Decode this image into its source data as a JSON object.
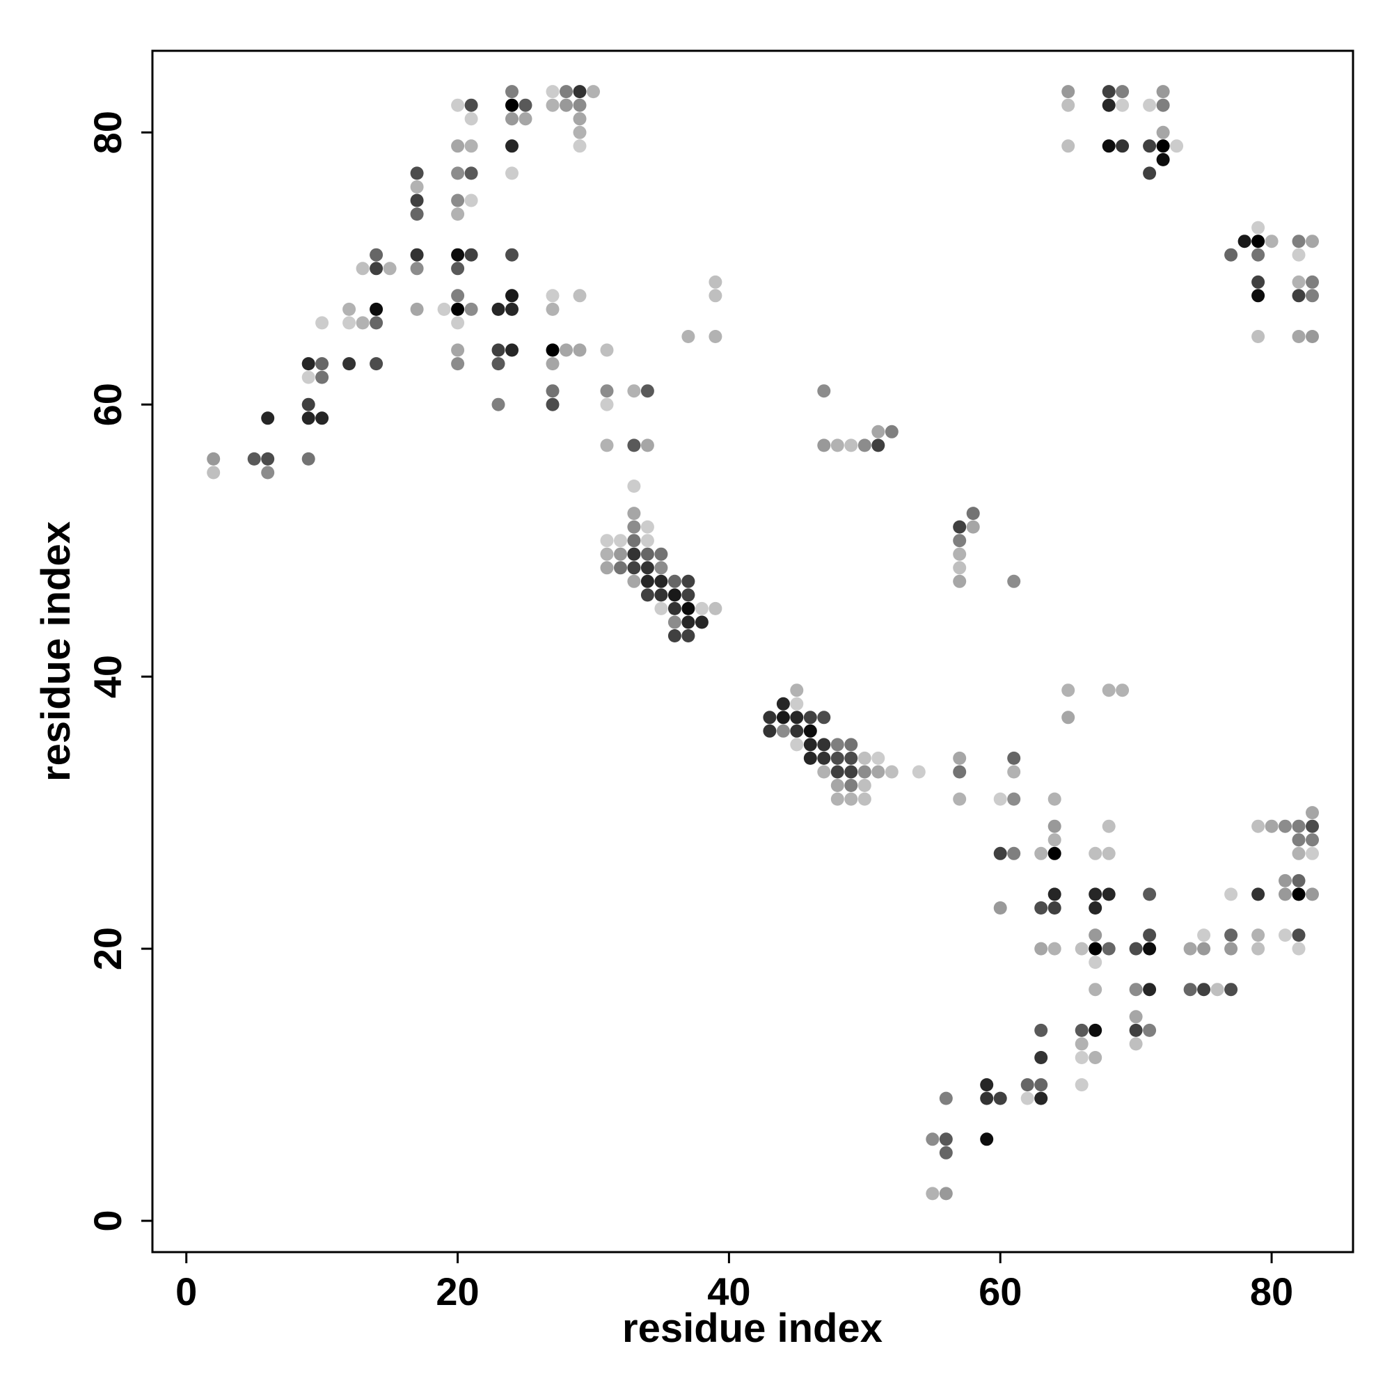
{
  "chart_data": {
    "type": "scatter",
    "title": "",
    "xlabel": "residue index",
    "ylabel": "residue index",
    "xlim": [
      -2.5,
      86
    ],
    "ylim": [
      -2.3,
      86
    ],
    "xticks": [
      0,
      20,
      40,
      60,
      80
    ],
    "yticks": [
      0,
      20,
      40,
      60,
      80
    ],
    "grid": false,
    "legend": "none",
    "point_color": "#000000",
    "value_encoding": "opacity 0-1 (contact strength)",
    "points": [
      [
        2,
        56,
        0.4
      ],
      [
        2,
        55,
        0.25
      ],
      [
        5,
        56,
        0.65
      ],
      [
        6,
        56,
        0.7
      ],
      [
        6,
        59,
        0.85
      ],
      [
        6,
        55,
        0.45
      ],
      [
        9,
        63,
        0.85
      ],
      [
        9,
        62,
        0.2
      ],
      [
        9,
        60,
        0.75
      ],
      [
        9,
        59,
        0.85
      ],
      [
        9,
        56,
        0.55
      ],
      [
        10,
        63,
        0.6
      ],
      [
        10,
        62,
        0.55
      ],
      [
        10,
        66,
        0.2
      ],
      [
        10,
        59,
        0.85
      ],
      [
        12,
        67,
        0.3
      ],
      [
        12,
        66,
        0.2
      ],
      [
        12,
        63,
        0.8
      ],
      [
        13,
        66,
        0.3
      ],
      [
        13,
        70,
        0.25
      ],
      [
        14,
        71,
        0.6
      ],
      [
        14,
        70,
        0.75
      ],
      [
        14,
        67,
        0.95
      ],
      [
        14,
        66,
        0.6
      ],
      [
        14,
        63,
        0.7
      ],
      [
        15,
        70,
        0.3
      ],
      [
        17,
        77,
        0.7
      ],
      [
        17,
        76,
        0.3
      ],
      [
        17,
        75,
        0.75
      ],
      [
        17,
        74,
        0.6
      ],
      [
        17,
        71,
        0.8
      ],
      [
        17,
        70,
        0.45
      ],
      [
        17,
        67,
        0.35
      ],
      [
        19,
        67,
        0.2
      ],
      [
        20,
        82,
        0.2
      ],
      [
        20,
        79,
        0.35
      ],
      [
        20,
        77,
        0.45
      ],
      [
        20,
        75,
        0.45
      ],
      [
        20,
        74,
        0.3
      ],
      [
        20,
        71,
        0.95
      ],
      [
        20,
        70,
        0.65
      ],
      [
        20,
        68,
        0.5
      ],
      [
        20,
        67,
        1.0
      ],
      [
        20,
        66,
        0.2
      ],
      [
        20,
        64,
        0.35
      ],
      [
        20,
        63,
        0.45
      ],
      [
        21,
        82,
        0.7
      ],
      [
        21,
        81,
        0.2
      ],
      [
        21,
        79,
        0.3
      ],
      [
        21,
        77,
        0.65
      ],
      [
        21,
        75,
        0.2
      ],
      [
        21,
        71,
        0.75
      ],
      [
        21,
        67,
        0.45
      ],
      [
        23,
        67,
        0.85
      ],
      [
        23,
        64,
        0.75
      ],
      [
        23,
        63,
        0.65
      ],
      [
        23,
        60,
        0.5
      ],
      [
        24,
        83,
        0.5
      ],
      [
        24,
        82,
        1.0
      ],
      [
        24,
        81,
        0.4
      ],
      [
        24,
        79,
        0.85
      ],
      [
        24,
        77,
        0.2
      ],
      [
        24,
        71,
        0.7
      ],
      [
        24,
        68,
        0.9
      ],
      [
        24,
        67,
        0.85
      ],
      [
        24,
        64,
        0.85
      ],
      [
        25,
        82,
        0.65
      ],
      [
        25,
        81,
        0.35
      ],
      [
        27,
        83,
        0.2
      ],
      [
        27,
        82,
        0.3
      ],
      [
        27,
        68,
        0.2
      ],
      [
        27,
        67,
        0.3
      ],
      [
        27,
        64,
        1.0
      ],
      [
        27,
        63,
        0.35
      ],
      [
        27,
        61,
        0.55
      ],
      [
        27,
        60,
        0.7
      ],
      [
        28,
        83,
        0.5
      ],
      [
        28,
        82,
        0.4
      ],
      [
        28,
        64,
        0.35
      ],
      [
        29,
        83,
        0.8
      ],
      [
        29,
        82,
        0.45
      ],
      [
        29,
        81,
        0.35
      ],
      [
        29,
        80,
        0.3
      ],
      [
        29,
        79,
        0.2
      ],
      [
        29,
        68,
        0.25
      ],
      [
        29,
        64,
        0.35
      ],
      [
        30,
        83,
        0.3
      ],
      [
        31,
        64,
        0.25
      ],
      [
        31,
        61,
        0.45
      ],
      [
        31,
        60,
        0.2
      ],
      [
        31,
        57,
        0.3
      ],
      [
        31,
        50,
        0.2
      ],
      [
        31,
        49,
        0.3
      ],
      [
        31,
        48,
        0.35
      ],
      [
        32,
        50,
        0.2
      ],
      [
        32,
        49,
        0.4
      ],
      [
        32,
        48,
        0.55
      ],
      [
        33,
        61,
        0.3
      ],
      [
        33,
        57,
        0.65
      ],
      [
        33,
        54,
        0.2
      ],
      [
        33,
        52,
        0.35
      ],
      [
        33,
        51,
        0.45
      ],
      [
        33,
        50,
        0.55
      ],
      [
        33,
        49,
        0.8
      ],
      [
        33,
        48,
        0.75
      ],
      [
        33,
        47,
        0.35
      ],
      [
        34,
        61,
        0.65
      ],
      [
        34,
        57,
        0.35
      ],
      [
        34,
        51,
        0.2
      ],
      [
        34,
        50,
        0.2
      ],
      [
        34,
        49,
        0.6
      ],
      [
        34,
        48,
        0.8
      ],
      [
        34,
        47,
        0.85
      ],
      [
        34,
        46,
        0.75
      ],
      [
        35,
        49,
        0.55
      ],
      [
        35,
        48,
        0.45
      ],
      [
        35,
        47,
        0.85
      ],
      [
        35,
        46,
        0.8
      ],
      [
        35,
        45,
        0.2
      ],
      [
        36,
        47,
        0.6
      ],
      [
        36,
        46,
        0.9
      ],
      [
        36,
        45,
        0.8
      ],
      [
        36,
        44,
        0.45
      ],
      [
        36,
        43,
        0.75
      ],
      [
        37,
        47,
        0.75
      ],
      [
        37,
        46,
        0.75
      ],
      [
        37,
        45,
        0.95
      ],
      [
        37,
        44,
        0.85
      ],
      [
        37,
        43,
        0.75
      ],
      [
        37,
        65,
        0.3
      ],
      [
        38,
        45,
        0.2
      ],
      [
        38,
        44,
        0.85
      ],
      [
        39,
        69,
        0.25
      ],
      [
        39,
        68,
        0.25
      ],
      [
        39,
        65,
        0.3
      ],
      [
        39,
        45,
        0.25
      ],
      [
        43,
        37,
        0.8
      ],
      [
        43,
        36,
        0.8
      ],
      [
        44,
        38,
        0.85
      ],
      [
        44,
        37,
        0.9
      ],
      [
        44,
        36,
        0.45
      ],
      [
        45,
        39,
        0.3
      ],
      [
        45,
        38,
        0.2
      ],
      [
        45,
        37,
        0.85
      ],
      [
        45,
        36,
        0.8
      ],
      [
        45,
        35,
        0.2
      ],
      [
        46,
        37,
        0.75
      ],
      [
        46,
        36,
        0.95
      ],
      [
        46,
        35,
        0.85
      ],
      [
        46,
        34,
        0.85
      ],
      [
        47,
        61,
        0.45
      ],
      [
        47,
        57,
        0.4
      ],
      [
        47,
        37,
        0.7
      ],
      [
        47,
        35,
        0.8
      ],
      [
        47,
        34,
        0.8
      ],
      [
        47,
        33,
        0.3
      ],
      [
        48,
        57,
        0.3
      ],
      [
        48,
        35,
        0.5
      ],
      [
        48,
        34,
        0.7
      ],
      [
        48,
        33,
        0.75
      ],
      [
        48,
        32,
        0.35
      ],
      [
        48,
        31,
        0.3
      ],
      [
        49,
        57,
        0.25
      ],
      [
        49,
        35,
        0.55
      ],
      [
        49,
        34,
        0.7
      ],
      [
        49,
        33,
        0.75
      ],
      [
        49,
        32,
        0.5
      ],
      [
        49,
        31,
        0.3
      ],
      [
        50,
        57,
        0.45
      ],
      [
        50,
        34,
        0.25
      ],
      [
        50,
        33,
        0.45
      ],
      [
        50,
        32,
        0.25
      ],
      [
        50,
        31,
        0.25
      ],
      [
        51,
        58,
        0.35
      ],
      [
        51,
        57,
        0.75
      ],
      [
        51,
        34,
        0.2
      ],
      [
        51,
        33,
        0.35
      ],
      [
        52,
        58,
        0.5
      ],
      [
        52,
        33,
        0.25
      ],
      [
        54,
        33,
        0.2
      ],
      [
        55,
        6,
        0.45
      ],
      [
        55,
        2,
        0.3
      ],
      [
        56,
        9,
        0.5
      ],
      [
        56,
        6,
        0.65
      ],
      [
        56,
        5,
        0.6
      ],
      [
        56,
        2,
        0.4
      ],
      [
        57,
        51,
        0.75
      ],
      [
        57,
        50,
        0.5
      ],
      [
        57,
        49,
        0.3
      ],
      [
        57,
        48,
        0.25
      ],
      [
        57,
        47,
        0.35
      ],
      [
        57,
        34,
        0.35
      ],
      [
        57,
        33,
        0.55
      ],
      [
        57,
        31,
        0.3
      ],
      [
        58,
        52,
        0.55
      ],
      [
        58,
        51,
        0.35
      ],
      [
        59,
        10,
        0.85
      ],
      [
        59,
        9,
        0.8
      ],
      [
        59,
        6,
        0.95
      ],
      [
        60,
        9,
        0.75
      ],
      [
        60,
        31,
        0.2
      ],
      [
        60,
        27,
        0.75
      ],
      [
        60,
        23,
        0.4
      ],
      [
        61,
        47,
        0.45
      ],
      [
        61,
        34,
        0.6
      ],
      [
        61,
        33,
        0.3
      ],
      [
        61,
        31,
        0.45
      ],
      [
        61,
        27,
        0.5
      ],
      [
        62,
        10,
        0.6
      ],
      [
        62,
        9,
        0.2
      ],
      [
        63,
        27,
        0.3
      ],
      [
        63,
        23,
        0.7
      ],
      [
        63,
        20,
        0.35
      ],
      [
        63,
        14,
        0.65
      ],
      [
        63,
        12,
        0.8
      ],
      [
        63,
        10,
        0.6
      ],
      [
        63,
        9,
        0.85
      ],
      [
        64,
        31,
        0.3
      ],
      [
        64,
        29,
        0.4
      ],
      [
        64,
        28,
        0.3
      ],
      [
        64,
        27,
        1.0
      ],
      [
        64,
        24,
        0.85
      ],
      [
        64,
        23,
        0.75
      ],
      [
        64,
        20,
        0.3
      ],
      [
        65,
        83,
        0.4
      ],
      [
        65,
        82,
        0.25
      ],
      [
        65,
        79,
        0.25
      ],
      [
        65,
        39,
        0.3
      ],
      [
        65,
        37,
        0.35
      ],
      [
        66,
        20,
        0.25
      ],
      [
        66,
        14,
        0.65
      ],
      [
        66,
        13,
        0.3
      ],
      [
        66,
        12,
        0.2
      ],
      [
        66,
        10,
        0.2
      ],
      [
        67,
        27,
        0.25
      ],
      [
        67,
        24,
        0.85
      ],
      [
        67,
        23,
        0.85
      ],
      [
        67,
        21,
        0.4
      ],
      [
        67,
        20,
        1.0
      ],
      [
        67,
        19,
        0.2
      ],
      [
        67,
        17,
        0.3
      ],
      [
        67,
        14,
        0.95
      ],
      [
        67,
        12,
        0.3
      ],
      [
        68,
        83,
        0.75
      ],
      [
        68,
        82,
        0.85
      ],
      [
        68,
        79,
        0.95
      ],
      [
        68,
        39,
        0.3
      ],
      [
        68,
        29,
        0.25
      ],
      [
        68,
        27,
        0.25
      ],
      [
        68,
        24,
        0.85
      ],
      [
        68,
        20,
        0.6
      ],
      [
        69,
        83,
        0.5
      ],
      [
        69,
        82,
        0.2
      ],
      [
        69,
        79,
        0.8
      ],
      [
        69,
        39,
        0.3
      ],
      [
        70,
        20,
        0.7
      ],
      [
        70,
        17,
        0.45
      ],
      [
        70,
        15,
        0.35
      ],
      [
        70,
        14,
        0.75
      ],
      [
        70,
        13,
        0.25
      ],
      [
        71,
        82,
        0.2
      ],
      [
        71,
        79,
        0.75
      ],
      [
        71,
        77,
        0.75
      ],
      [
        71,
        24,
        0.65
      ],
      [
        71,
        21,
        0.7
      ],
      [
        71,
        20,
        0.95
      ],
      [
        71,
        17,
        0.85
      ],
      [
        71,
        14,
        0.5
      ],
      [
        72,
        83,
        0.4
      ],
      [
        72,
        82,
        0.5
      ],
      [
        72,
        80,
        0.35
      ],
      [
        72,
        79,
        1.0
      ],
      [
        72,
        78,
        0.95
      ],
      [
        73,
        79,
        0.2
      ],
      [
        74,
        20,
        0.35
      ],
      [
        74,
        17,
        0.6
      ],
      [
        75,
        21,
        0.2
      ],
      [
        75,
        20,
        0.4
      ],
      [
        75,
        17,
        0.75
      ],
      [
        76,
        17,
        0.25
      ],
      [
        77,
        71,
        0.6
      ],
      [
        77,
        24,
        0.2
      ],
      [
        77,
        21,
        0.6
      ],
      [
        77,
        20,
        0.4
      ],
      [
        77,
        17,
        0.7
      ],
      [
        78,
        72,
        0.9
      ],
      [
        79,
        73,
        0.2
      ],
      [
        79,
        72,
        1.0
      ],
      [
        79,
        71,
        0.55
      ],
      [
        79,
        69,
        0.75
      ],
      [
        79,
        68,
        0.95
      ],
      [
        79,
        65,
        0.25
      ],
      [
        79,
        29,
        0.25
      ],
      [
        79,
        24,
        0.8
      ],
      [
        79,
        21,
        0.3
      ],
      [
        79,
        20,
        0.25
      ],
      [
        80,
        72,
        0.3
      ],
      [
        80,
        29,
        0.35
      ],
      [
        81,
        29,
        0.45
      ],
      [
        81,
        25,
        0.4
      ],
      [
        81,
        24,
        0.4
      ],
      [
        81,
        21,
        0.2
      ],
      [
        82,
        72,
        0.5
      ],
      [
        82,
        71,
        0.2
      ],
      [
        82,
        69,
        0.3
      ],
      [
        82,
        68,
        0.75
      ],
      [
        82,
        65,
        0.35
      ],
      [
        82,
        29,
        0.5
      ],
      [
        82,
        28,
        0.5
      ],
      [
        82,
        27,
        0.3
      ],
      [
        82,
        25,
        0.6
      ],
      [
        82,
        24,
        1.0
      ],
      [
        82,
        21,
        0.7
      ],
      [
        82,
        20,
        0.2
      ],
      [
        83,
        72,
        0.35
      ],
      [
        83,
        69,
        0.5
      ],
      [
        83,
        68,
        0.5
      ],
      [
        83,
        65,
        0.4
      ],
      [
        83,
        30,
        0.35
      ],
      [
        83,
        29,
        0.7
      ],
      [
        83,
        28,
        0.5
      ],
      [
        83,
        27,
        0.2
      ],
      [
        83,
        24,
        0.4
      ]
    ]
  }
}
